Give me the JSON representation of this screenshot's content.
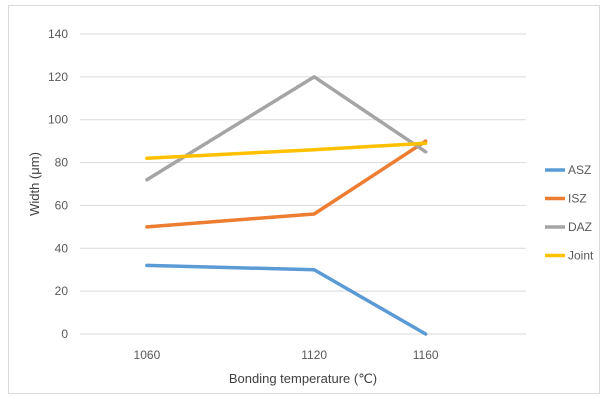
{
  "chart_data": {
    "type": "line",
    "title": "",
    "xlabel": "Bonding temperature (℃)",
    "ylabel": "Width (μm)",
    "x": [
      1060,
      1120,
      1160
    ],
    "x_tick_labels": [
      "1060",
      "1120",
      "1160"
    ],
    "ylim": [
      0,
      140
    ],
    "y_ticks": [
      0,
      20,
      40,
      60,
      80,
      100,
      120,
      140
    ],
    "grid": true,
    "legend_position": "right",
    "series": [
      {
        "name": "ASZ",
        "values": [
          32,
          30,
          0
        ],
        "color": "#5b9bd5"
      },
      {
        "name": "ISZ",
        "values": [
          50,
          56,
          90
        ],
        "color": "#ed7d31"
      },
      {
        "name": "DAZ",
        "values": [
          72,
          120,
          85
        ],
        "color": "#a5a5a5"
      },
      {
        "name": "Joint",
        "values": [
          82,
          86,
          89
        ],
        "color": "#ffc000"
      }
    ]
  }
}
